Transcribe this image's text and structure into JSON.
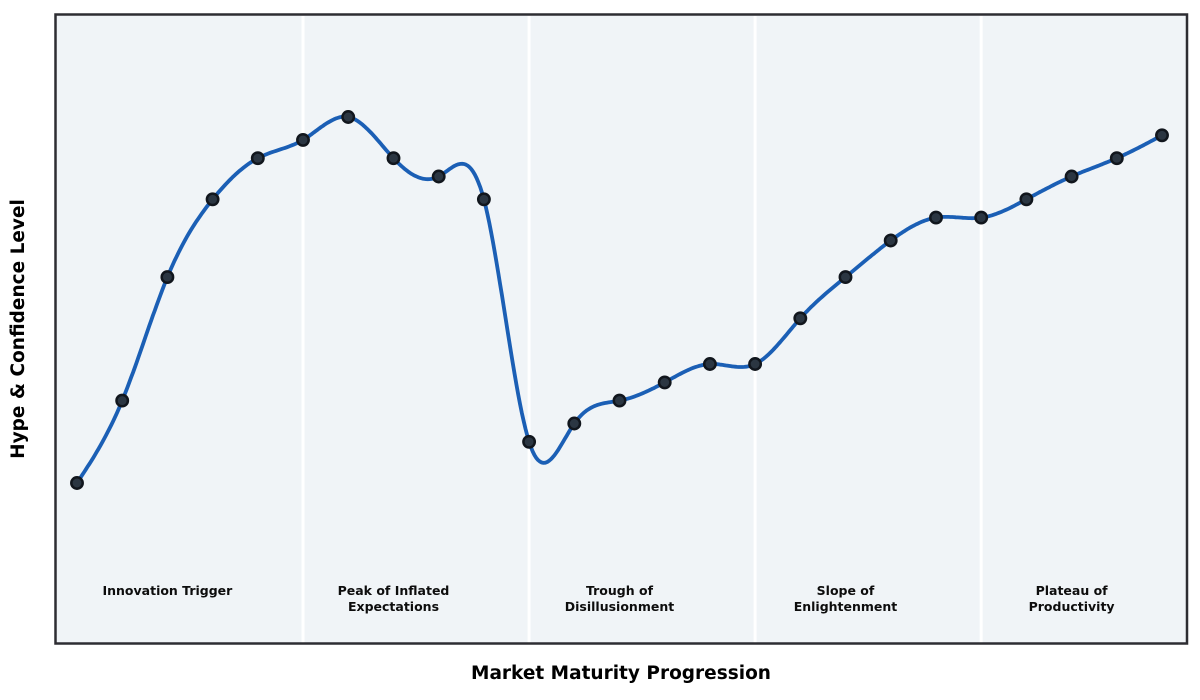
{
  "figure": {
    "xlabel": "Market Maturity Progression",
    "ylabel": "Hype & Confidence Level"
  },
  "phases": [
    {
      "label_line1": "Innovation Trigger",
      "label_line2": "",
      "x": 2
    },
    {
      "label_line1": "Peak of Inflated",
      "label_line2": "Expectations",
      "x": 7
    },
    {
      "label_line1": "Trough of",
      "label_line2": "Disillusionment",
      "x": 12
    },
    {
      "label_line1": "Slope of",
      "label_line2": "Enlightenment",
      "x": 17
    },
    {
      "label_line1": "Plateau of",
      "label_line2": "Productivity",
      "x": 22
    }
  ],
  "chart_data": {
    "type": "line",
    "title": "",
    "xlabel": "Market Maturity Progression",
    "ylabel": "Hype & Confidence Level",
    "x": [
      0,
      1,
      2,
      3,
      4,
      5,
      6,
      7,
      8,
      9,
      10,
      11,
      12,
      13,
      14,
      15,
      16,
      17,
      18,
      19,
      20,
      21,
      22,
      23,
      24
    ],
    "series": [
      {
        "name": "Hype & Confidence",
        "values": [
          10,
          28,
          55,
          72,
          81,
          85,
          90,
          81,
          77,
          72,
          19,
          23,
          28,
          32,
          36,
          36,
          46,
          55,
          63,
          68,
          68,
          72,
          77,
          81,
          86
        ]
      }
    ],
    "ylim": [
      0,
      100
    ],
    "xlim": [
      -0.5,
      24.5
    ],
    "grid": false,
    "legend": false,
    "smoothing": "cubic-spline",
    "markers": true,
    "phase_boundaries_x": [
      5,
      10,
      15,
      20
    ],
    "phase_labels": [
      {
        "text": "Innovation Trigger",
        "x": 2
      },
      {
        "text": "Peak of Inflated Expectations",
        "x": 7
      },
      {
        "text": "Trough of Disillusionment",
        "x": 12
      },
      {
        "text": "Slope of Enlightenment",
        "x": 17
      },
      {
        "text": "Plateau of Productivity",
        "x": 22
      }
    ]
  },
  "colors": {
    "line": "#1b5fb5",
    "marker_fill": "#2b3642",
    "marker_edge": "#11161d",
    "plot_bg": "#f0f4f7",
    "separator": "#ffffff",
    "border": "#2d2d32",
    "label_text": "#0d0d0d"
  }
}
